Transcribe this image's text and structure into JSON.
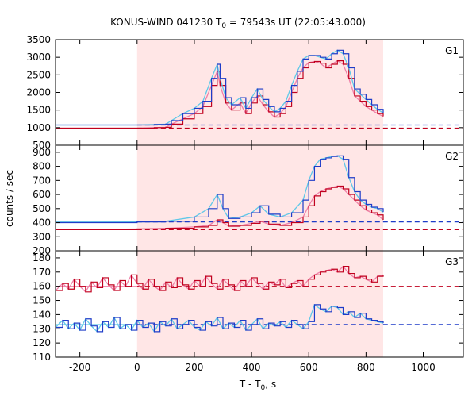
{
  "chart_data": {
    "type": "line",
    "title": "KONUS-WIND 041230 T",
    "title_sub": "0",
    "title_rest": " = 79543s UT (22:05:43.000)",
    "xlabel": "T - T",
    "xlabel_sub": "0",
    "xlabel_rest": ", s",
    "ylabel": "counts / sec",
    "xlim": [
      -285,
      1140
    ],
    "xticks": [
      "-200",
      "0",
      "200",
      "400",
      "600",
      "800",
      "1000"
    ],
    "xtick_values": [
      -200,
      0,
      200,
      400,
      600,
      800,
      1000
    ],
    "shaded_interval": [
      0,
      860
    ],
    "colors": {
      "series_red": "#c0001e",
      "series_blue": "#1e3cc8",
      "fit_pink": "#f080a8",
      "fit_cyan": "#60c8e8",
      "shade": "#ffe6e6"
    },
    "panels": [
      {
        "label": "G1",
        "ylim": [
          500,
          3500
        ],
        "yticks": [
          "500",
          "1000",
          "1500",
          "2000",
          "2500",
          "3000",
          "3500"
        ],
        "ytick_values": [
          500,
          1000,
          1500,
          2000,
          2500,
          3000,
          3500
        ],
        "baselines": [
          {
            "color": "red",
            "value": 985
          },
          {
            "color": "blue",
            "value": 1075
          }
        ],
        "series": [
          {
            "color": "red",
            "x": [
              -285,
              0,
              60,
              100,
              120,
              160,
              200,
              230,
              260,
              280,
              290,
              310,
              330,
              360,
              380,
              400,
              420,
              440,
              460,
              480,
              500,
              520,
              540,
              560,
              580,
              600,
              620,
              640,
              660,
              680,
              700,
              720,
              740,
              760,
              780,
              800,
              820,
              840,
              860
            ],
            "y": [
              985,
              985,
              1000,
              1010,
              1100,
              1250,
              1400,
              1600,
              2200,
              2600,
              2200,
              1700,
              1500,
              1700,
              1400,
              1700,
              1900,
              1650,
              1450,
              1300,
              1400,
              1600,
              2000,
              2400,
              2700,
              2850,
              2880,
              2830,
              2700,
              2800,
              2900,
              2800,
              2400,
              1900,
              1750,
              1600,
              1500,
              1400,
              1320
            ]
          },
          {
            "color": "blue",
            "x": [
              -285,
              0,
              60,
              100,
              120,
              160,
              200,
              230,
              260,
              280,
              290,
              310,
              330,
              360,
              380,
              400,
              420,
              440,
              460,
              480,
              500,
              520,
              540,
              560,
              580,
              600,
              620,
              640,
              660,
              680,
              700,
              720,
              740,
              760,
              780,
              800,
              820,
              840,
              860
            ],
            "y": [
              1075,
              1075,
              1090,
              1100,
              1200,
              1400,
              1550,
              1750,
              2400,
              2800,
              2400,
              1850,
              1650,
              1850,
              1550,
              1850,
              2100,
              1800,
              1600,
              1450,
              1550,
              1750,
              2200,
              2600,
              2950,
              3050,
              3050,
              3000,
              2950,
              3100,
              3200,
              3100,
              2700,
              2100,
              1950,
              1800,
              1650,
              1520,
              1420
            ]
          }
        ]
      },
      {
        "label": "G2",
        "ylim": [
          200,
          950
        ],
        "yticks": [
          "200",
          "300",
          "400",
          "500",
          "600",
          "700",
          "800",
          "900"
        ],
        "ytick_values": [
          200,
          300,
          400,
          500,
          600,
          700,
          800,
          900
        ],
        "baselines": [
          {
            "color": "red",
            "value": 350
          },
          {
            "color": "blue",
            "value": 405
          }
        ],
        "series": [
          {
            "color": "red",
            "x": [
              -285,
              0,
              100,
              200,
              250,
              280,
              300,
              320,
              360,
              400,
              430,
              460,
              500,
              540,
              580,
              600,
              620,
              640,
              660,
              680,
              700,
              720,
              740,
              760,
              780,
              800,
              820,
              840,
              860
            ],
            "y": [
              350,
              355,
              360,
              370,
              380,
              420,
              400,
              375,
              380,
              395,
              410,
              390,
              380,
              400,
              440,
              520,
              590,
              620,
              640,
              650,
              660,
              640,
              600,
              560,
              520,
              490,
              470,
              455,
              420
            ]
          },
          {
            "color": "blue",
            "x": [
              -285,
              0,
              100,
              200,
              250,
              280,
              300,
              320,
              360,
              400,
              430,
              460,
              500,
              540,
              580,
              600,
              620,
              640,
              660,
              680,
              700,
              720,
              740,
              760,
              780,
              800,
              820,
              840,
              860
            ],
            "y": [
              400,
              405,
              410,
              440,
              500,
              600,
              500,
              430,
              440,
              470,
              520,
              460,
              440,
              470,
              560,
              700,
              800,
              850,
              860,
              870,
              875,
              850,
              720,
              620,
              560,
              530,
              510,
              500,
              475
            ]
          }
        ]
      },
      {
        "label": "G3",
        "ylim": [
          110,
          185
        ],
        "yticks": [
          "110",
          "120",
          "130",
          "140",
          "150",
          "160",
          "170",
          "180"
        ],
        "ytick_values": [
          110,
          120,
          130,
          140,
          150,
          160,
          170,
          180
        ],
        "baselines": [
          {
            "color": "red",
            "value": 160
          },
          {
            "color": "blue",
            "value": 133
          }
        ],
        "series": [
          {
            "color": "red",
            "x": [
              -285,
              -260,
              -240,
              -220,
              -200,
              -180,
              -160,
              -140,
              -120,
              -100,
              -80,
              -60,
              -40,
              -20,
              0,
              20,
              40,
              60,
              80,
              100,
              120,
              140,
              160,
              180,
              200,
              220,
              240,
              260,
              280,
              300,
              320,
              340,
              360,
              380,
              400,
              420,
              440,
              460,
              480,
              500,
              520,
              540,
              560,
              580,
              600,
              620,
              640,
              660,
              680,
              700,
              720,
              740,
              760,
              780,
              800,
              820,
              840,
              860
            ],
            "y": [
              157,
              162,
              158,
              165,
              160,
              156,
              163,
              159,
              166,
              161,
              157,
              164,
              160,
              168,
              162,
              158,
              165,
              160,
              157,
              163,
              159,
              166,
              161,
              158,
              164,
              160,
              167,
              162,
              158,
              165,
              161,
              157,
              164,
              160,
              166,
              162,
              158,
              163,
              161,
              165,
              159,
              162,
              164,
              160,
              165,
              168,
              170,
              171,
              172,
              170,
              174,
              169,
              166,
              167,
              165,
              163,
              167,
              168
            ]
          },
          {
            "color": "blue",
            "x": [
              -285,
              -260,
              -240,
              -220,
              -200,
              -180,
              -160,
              -140,
              -120,
              -100,
              -80,
              -60,
              -40,
              -20,
              0,
              20,
              40,
              60,
              80,
              100,
              120,
              140,
              160,
              180,
              200,
              220,
              240,
              260,
              280,
              300,
              320,
              340,
              360,
              380,
              400,
              420,
              440,
              460,
              480,
              500,
              520,
              540,
              560,
              580,
              600,
              620,
              640,
              660,
              680,
              700,
              720,
              740,
              760,
              780,
              800,
              820,
              840,
              860
            ],
            "y": [
              131,
              136,
              130,
              134,
              129,
              137,
              132,
              128,
              135,
              131,
              138,
              130,
              133,
              129,
              136,
              131,
              134,
              128,
              135,
              132,
              137,
              130,
              133,
              136,
              131,
              129,
              135,
              132,
              138,
              130,
              134,
              131,
              136,
              129,
              133,
              137,
              130,
              134,
              132,
              135,
              131,
              136,
              133,
              130,
              135,
              147,
              144,
              142,
              146,
              145,
              140,
              142,
              138,
              141,
              137,
              136,
              135,
              134
            ]
          }
        ]
      }
    ]
  }
}
